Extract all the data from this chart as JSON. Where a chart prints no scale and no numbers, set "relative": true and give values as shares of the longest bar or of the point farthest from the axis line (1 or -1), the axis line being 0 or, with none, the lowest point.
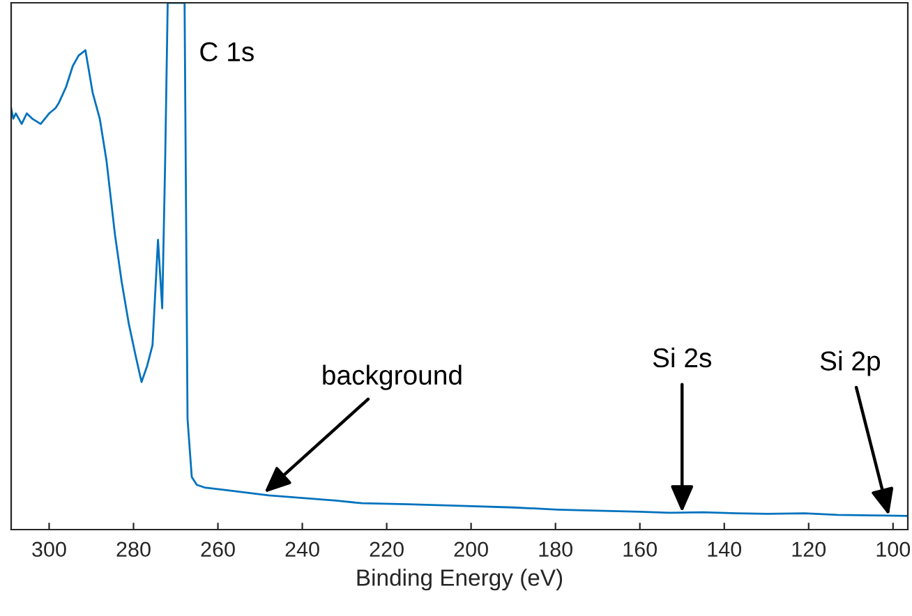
{
  "chart_data": {
    "type": "line",
    "relative": true,
    "xlabel": "Binding Energy (eV)",
    "xlim": [
      309,
      96.5
    ],
    "xticks": [
      300,
      280,
      260,
      240,
      220,
      200,
      180,
      160,
      140,
      120,
      100
    ],
    "color": "#0072bd",
    "grid": false,
    "legend": false,
    "marker": "none",
    "line_style": "solid",
    "x": [
      309,
      308.5,
      307.9,
      306.5,
      305.3,
      304,
      302,
      300,
      298.5,
      297.7,
      296,
      294.4,
      293,
      291.4,
      289.7,
      288,
      286.4,
      284.4,
      282.8,
      281.1,
      279.5,
      278.1,
      276.8,
      275.5,
      274.2,
      273.2,
      272.5,
      271.9,
      270.5,
      268.9,
      267.9,
      267.2,
      266.2,
      265,
      263.2,
      258,
      253,
      248,
      240,
      232,
      225.8,
      215,
      202.6,
      190,
      179.5,
      170,
      160,
      153,
      145,
      137,
      129.8,
      121,
      113.2,
      105,
      96.7
    ],
    "values": [
      0.8,
      0.78,
      0.79,
      0.77,
      0.79,
      0.78,
      0.77,
      0.79,
      0.8,
      0.81,
      0.84,
      0.88,
      0.9,
      0.91,
      0.83,
      0.78,
      0.7,
      0.56,
      0.47,
      0.39,
      0.33,
      0.28,
      0.31,
      0.35,
      0.55,
      0.42,
      0.7,
      1.0,
      1.0,
      1.0,
      1.0,
      0.21,
      0.1,
      0.085,
      0.08,
      0.075,
      0.07,
      0.065,
      0.06,
      0.055,
      0.05,
      0.048,
      0.045,
      0.042,
      0.038,
      0.036,
      0.034,
      0.032,
      0.033,
      0.031,
      0.03,
      0.031,
      0.028,
      0.027,
      0.026
    ],
    "annotations": [
      {
        "text": "C 1s",
        "x": 270,
        "y": 1.0
      },
      {
        "text": "background",
        "x": 249,
        "y": 0.07
      },
      {
        "text": "Si 2s",
        "x": 150,
        "y": 0.033
      },
      {
        "text": "Si 2p",
        "x": 101,
        "y": 0.027
      }
    ]
  }
}
